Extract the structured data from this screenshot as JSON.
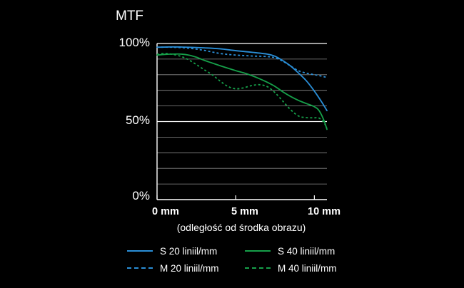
{
  "chart_data": {
    "type": "line",
    "title": "MTF",
    "xlabel": "(odległość od środka obrazu)",
    "ylabel": "",
    "xlim": [
      0,
      10.8
    ],
    "ylim": [
      0,
      100
    ],
    "x_ticks": [
      {
        "value": 0,
        "label": "0 mm"
      },
      {
        "value": 5,
        "label": "5 mm"
      },
      {
        "value": 10,
        "label": "10 mm"
      }
    ],
    "y_ticks": [
      {
        "value": 0,
        "label": "0%"
      },
      {
        "value": 50,
        "label": "50%"
      },
      {
        "value": 100,
        "label": "100%"
      }
    ],
    "grid": true,
    "legend_position": "bottom",
    "series": [
      {
        "name": "S 20 liniil/mm",
        "color": "#2a8fd8",
        "dash": false,
        "x": [
          0,
          1,
          2,
          3,
          4,
          5,
          6,
          7,
          7.5,
          8,
          8.5,
          9,
          9.5,
          10,
          10.5,
          10.8
        ],
        "y": [
          97.6,
          97.8,
          97.6,
          97.2,
          96.6,
          95.4,
          94.4,
          93.2,
          91.8,
          89.0,
          85.5,
          81.0,
          76.0,
          69.5,
          62.0,
          57.0
        ]
      },
      {
        "name": "M 20 liniil/mm",
        "color": "#2a8fd8",
        "dash": true,
        "x": [
          0,
          1,
          2,
          3,
          4,
          5,
          6,
          7,
          7.5,
          8,
          8.5,
          9,
          9.5,
          10,
          10.5,
          10.8
        ],
        "y": [
          97.6,
          97.6,
          97.0,
          95.6,
          93.6,
          92.6,
          92.0,
          91.6,
          90.8,
          88.6,
          85.5,
          82.5,
          81.0,
          80.0,
          79.0,
          78.2
        ]
      },
      {
        "name": "S 40 liniil/mm",
        "color": "#16a04a",
        "dash": false,
        "x": [
          0,
          0.5,
          1,
          1.5,
          2,
          2.5,
          3,
          3.5,
          4,
          4.5,
          5,
          5.5,
          6,
          6.5,
          7,
          7.5,
          8,
          8.5,
          9,
          9.5,
          10,
          10.3,
          10.6,
          10.8
        ],
        "y": [
          92.6,
          93.0,
          93.2,
          93.2,
          92.6,
          91.2,
          89.2,
          87.5,
          85.8,
          84.2,
          82.6,
          81.2,
          79.5,
          77.5,
          75.2,
          72.5,
          69.0,
          66.0,
          63.5,
          61.5,
          59.5,
          57.0,
          51.0,
          45.0
        ]
      },
      {
        "name": "M 40 liniil/mm",
        "color": "#16a04a",
        "dash": true,
        "x": [
          0,
          0.5,
          1,
          1.5,
          2,
          2.5,
          3,
          3.5,
          4,
          4.5,
          5,
          5.5,
          6,
          6.5,
          7,
          7.5,
          8,
          8.5,
          9,
          9.5,
          10,
          10.3,
          10.6,
          10.8
        ],
        "y": [
          93.0,
          93.6,
          93.0,
          91.8,
          89.6,
          86.5,
          83.2,
          80.0,
          76.0,
          72.5,
          71.0,
          71.6,
          73.0,
          73.6,
          72.4,
          68.5,
          63.0,
          57.5,
          53.5,
          52.5,
          52.4,
          52.2,
          49.5,
          45.5
        ]
      }
    ]
  }
}
